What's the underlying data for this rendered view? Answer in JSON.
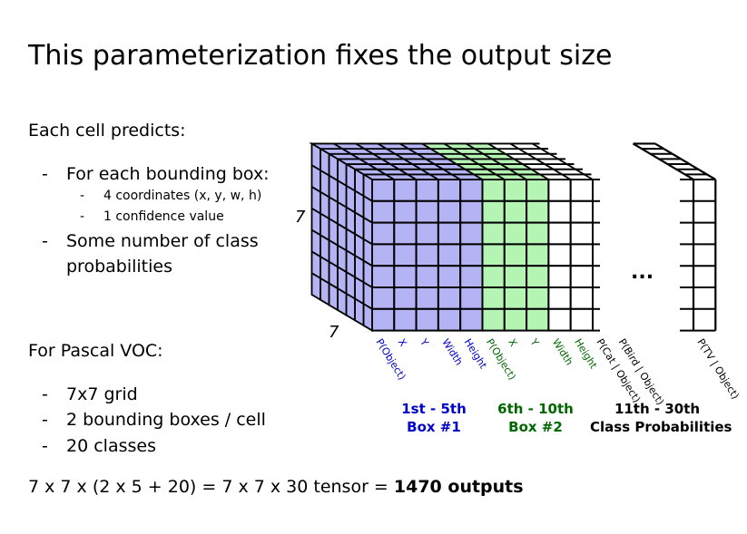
{
  "title": "This parameterization fixes the output size",
  "left": {
    "each_cell": "Each cell predicts:",
    "bullet1": "For each bounding box:",
    "sub1": "4 coordinates (x, y, w, h)",
    "sub2": "1 confidence value",
    "bullet2_line1": "Some number of class",
    "bullet2_line2": "probabilities",
    "voc_heading": "For Pascal VOC:",
    "voc_items": [
      "7x7 grid",
      "2 bounding boxes / cell",
      "20 classes"
    ],
    "dash": "-"
  },
  "formula": {
    "text": "7 x 7 x (2 x 5 + 20) = 7 x 7 x 30 tensor = ",
    "bold": "1470 outputs"
  },
  "diagram": {
    "dim_height": "7",
    "dim_depth": "7",
    "ellipsis": "...",
    "box1_labels": [
      "P(Object)",
      "X",
      "Y",
      "Width",
      "Height"
    ],
    "box2_labels": [
      "P(Object)",
      "X",
      "Y",
      "Width",
      "Height"
    ],
    "class_labels": [
      "P(Cat | Object)",
      "P(Bird | Object)",
      "P(TV | Object)"
    ],
    "groups": [
      {
        "line1": "1st - 5th",
        "line2": "Box #1"
      },
      {
        "line1": "6th - 10th",
        "line2": "Box #2"
      },
      {
        "line1": "11th - 30th",
        "line2": "Class Probabilities"
      }
    ],
    "colors": {
      "box1_fill": "#b4b4f5",
      "box2_fill": "#b4f5b4",
      "box1_text": "#0000cc",
      "box2_text": "#006600",
      "grid": "#000000"
    }
  }
}
